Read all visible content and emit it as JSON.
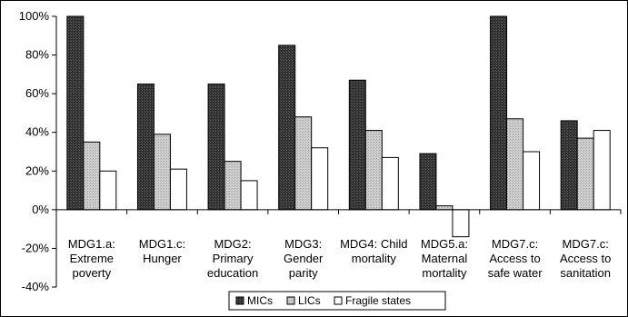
{
  "chart_data": {
    "type": "bar",
    "title": "",
    "xlabel": "",
    "ylabel": "",
    "ylim": [
      -40,
      100
    ],
    "yticks": [
      -40,
      -20,
      0,
      20,
      40,
      60,
      80,
      100
    ],
    "ytick_labels": [
      "-40%",
      "-20%",
      "0%",
      "20%",
      "40%",
      "60%",
      "80%",
      "100%"
    ],
    "categories": [
      [
        "MDG1.a:",
        "Extreme",
        "poverty"
      ],
      [
        "MDG1.c:",
        "Hunger"
      ],
      [
        "MDG2:",
        "Primary",
        "education"
      ],
      [
        "MDG3:",
        "Gender",
        "parity"
      ],
      [
        "MDG4: Child",
        "mortality"
      ],
      [
        "MDG5.a:",
        "Maternal",
        "mortality"
      ],
      [
        "MDG7.c:",
        "Access to",
        "safe water"
      ],
      [
        "MDG7.c:",
        "Access to",
        "sanitation"
      ]
    ],
    "series": [
      {
        "name": "MICs",
        "color": "#3a3a3a",
        "values": [
          100,
          65,
          65,
          85,
          67,
          29,
          100,
          46
        ]
      },
      {
        "name": "LICs",
        "color": "#c8c8c8",
        "values": [
          35,
          39,
          25,
          48,
          41,
          2,
          47,
          37
        ]
      },
      {
        "name": "Fragile states",
        "color": "#ffffff",
        "values": [
          20,
          21,
          15,
          32,
          27,
          -14,
          30,
          41
        ]
      }
    ],
    "grid": false,
    "legend_position": "bottom"
  }
}
